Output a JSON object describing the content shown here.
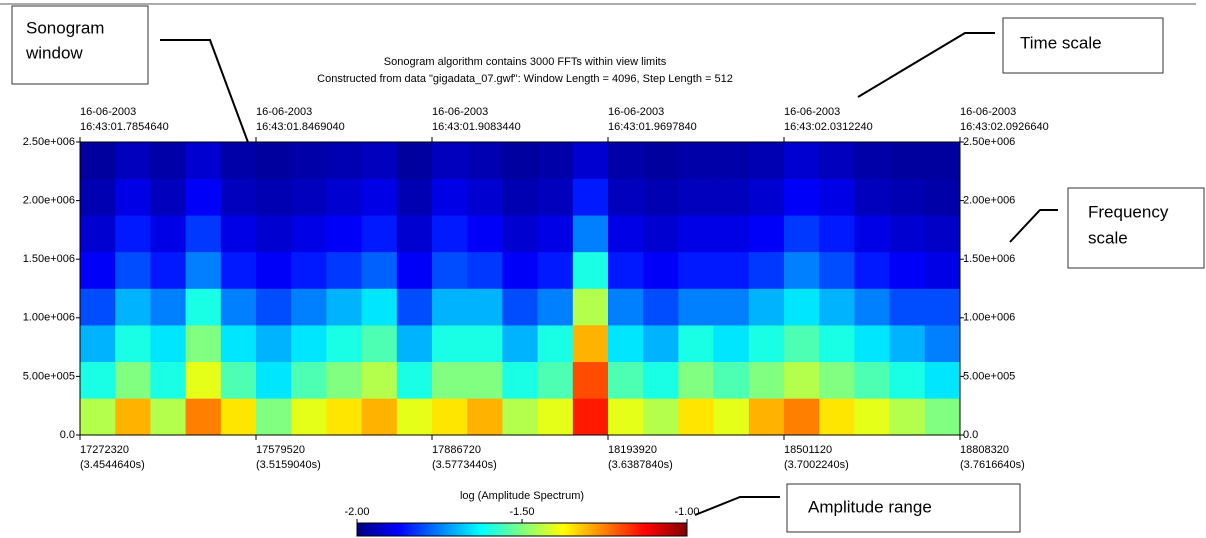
{
  "chart_data": {
    "type": "heatmap",
    "title": [
      "Sonogram algorithm contains 3000 FFTs within view limits",
      "Constructed from data \"gigadata_07.gwf\": Window Length = 4096, Step Length = 512"
    ],
    "xlim": [
      17272320,
      18808320
    ],
    "ylim": [
      0,
      2500000
    ],
    "xticks": [
      {
        "value": 17272320,
        "label": [
          "17272320",
          "(3.4544640s)"
        ]
      },
      {
        "value": 17579520,
        "label": [
          "17579520",
          "(3.5159040s)"
        ]
      },
      {
        "value": 17886720,
        "label": [
          "17886720",
          "(3.5773440s)"
        ]
      },
      {
        "value": 18193920,
        "label": [
          "18193920",
          "(3.6387840s)"
        ]
      },
      {
        "value": 18501120,
        "label": [
          "18501120",
          "(3.7002240s)"
        ]
      },
      {
        "value": 18808320,
        "label": [
          "18808320",
          "(3.7616640s)"
        ]
      }
    ],
    "x2ticks": [
      {
        "value": 17272320,
        "label": [
          "16-06-2003",
          "16:43:01.7854640"
        ]
      },
      {
        "value": 17579520,
        "label": [
          "16-06-2003",
          "16:43:01.8469040"
        ]
      },
      {
        "value": 17886720,
        "label": [
          "16-06-2003",
          "16:43:01.9083440"
        ]
      },
      {
        "value": 18193920,
        "label": [
          "16-06-2003",
          "16:43:01.9697840"
        ]
      },
      {
        "value": 18501120,
        "label": [
          "16-06-2003",
          "16:43:02.0312240"
        ]
      },
      {
        "value": 18808320,
        "label": [
          "16-06-2003",
          "16:43:02.0926640"
        ]
      }
    ],
    "yticks": [
      {
        "value": 0,
        "label": "0.0"
      },
      {
        "value": 500000,
        "label": "5.00e+005"
      },
      {
        "value": 1000000,
        "label": "1.00e+006"
      },
      {
        "value": 1500000,
        "label": "1.50e+006"
      },
      {
        "value": 2000000,
        "label": "2.00e+006"
      },
      {
        "value": 2500000,
        "label": "2.50e+006"
      }
    ],
    "xbins": [
      17272320,
      17333760,
      17395200,
      17456640,
      17518080,
      17579520,
      17640960,
      17702400,
      17763840,
      17825280,
      17886720,
      17948160,
      18009600,
      18071040,
      18132480,
      18193920,
      18255360,
      18316800,
      18378240,
      18439680,
      18501120,
      18562560,
      18624000,
      18685440,
      18746880,
      18808320
    ],
    "ybins": [
      0,
      312500,
      625000,
      937500,
      1250000,
      1562500,
      1875000,
      2187500,
      2500000
    ],
    "z": [
      [
        -1.45,
        -1.3,
        -1.45,
        -1.25,
        -1.35,
        -1.5,
        -1.4,
        -1.35,
        -1.3,
        -1.4,
        -1.35,
        -1.3,
        -1.45,
        -1.4,
        -1.15,
        -1.4,
        -1.45,
        -1.35,
        -1.4,
        -1.3,
        -1.25,
        -1.35,
        -1.4,
        -1.45,
        -1.5
      ],
      [
        -1.6,
        -1.5,
        -1.6,
        -1.4,
        -1.55,
        -1.65,
        -1.55,
        -1.5,
        -1.45,
        -1.6,
        -1.5,
        -1.5,
        -1.6,
        -1.55,
        -1.2,
        -1.55,
        -1.6,
        -1.5,
        -1.55,
        -1.5,
        -1.45,
        -1.5,
        -1.55,
        -1.6,
        -1.65
      ],
      [
        -1.7,
        -1.6,
        -1.65,
        -1.5,
        -1.65,
        -1.7,
        -1.65,
        -1.6,
        -1.55,
        -1.7,
        -1.6,
        -1.6,
        -1.7,
        -1.6,
        -1.3,
        -1.65,
        -1.7,
        -1.6,
        -1.65,
        -1.6,
        -1.55,
        -1.6,
        -1.65,
        -1.7,
        -1.75
      ],
      [
        -1.8,
        -1.7,
        -1.75,
        -1.6,
        -1.75,
        -1.8,
        -1.75,
        -1.7,
        -1.65,
        -1.8,
        -1.7,
        -1.7,
        -1.8,
        -1.75,
        -1.45,
        -1.75,
        -1.8,
        -1.75,
        -1.75,
        -1.7,
        -1.65,
        -1.7,
        -1.75,
        -1.8,
        -1.8
      ],
      [
        -1.88,
        -1.8,
        -1.85,
        -1.75,
        -1.85,
        -1.88,
        -1.85,
        -1.82,
        -1.78,
        -1.88,
        -1.8,
        -1.82,
        -1.88,
        -1.85,
        -1.6,
        -1.85,
        -1.88,
        -1.85,
        -1.85,
        -1.82,
        -1.75,
        -1.8,
        -1.85,
        -1.88,
        -1.9
      ],
      [
        -1.92,
        -1.85,
        -1.9,
        -1.82,
        -1.9,
        -1.92,
        -1.9,
        -1.88,
        -1.85,
        -1.92,
        -1.85,
        -1.88,
        -1.92,
        -1.9,
        -1.75,
        -1.9,
        -1.92,
        -1.9,
        -1.9,
        -1.88,
        -1.82,
        -1.85,
        -1.9,
        -1.92,
        -1.93
      ],
      [
        -1.95,
        -1.9,
        -1.94,
        -1.88,
        -1.94,
        -1.95,
        -1.94,
        -1.92,
        -1.9,
        -1.95,
        -1.9,
        -1.92,
        -1.95,
        -1.94,
        -1.85,
        -1.94,
        -1.95,
        -1.94,
        -1.94,
        -1.92,
        -1.88,
        -1.9,
        -1.94,
        -1.95,
        -1.96
      ],
      [
        -1.97,
        -1.94,
        -1.96,
        -1.92,
        -1.96,
        -1.97,
        -1.96,
        -1.95,
        -1.94,
        -1.97,
        -1.94,
        -1.95,
        -1.97,
        -1.96,
        -1.92,
        -1.96,
        -1.97,
        -1.96,
        -1.96,
        -1.95,
        -1.92,
        -1.94,
        -1.96,
        -1.97,
        -1.97
      ]
    ],
    "colorbar": {
      "label": "log (Amplitude Spectrum)",
      "lim": [
        -2,
        -1
      ],
      "ticks": [
        {
          "value": -2,
          "label": "-2.00"
        },
        {
          "value": -1.5,
          "label": "-1.50"
        },
        {
          "value": -1,
          "label": "-1.00"
        }
      ]
    },
    "annotations": {
      "sonogram_window": [
        "Sonogram",
        "window"
      ],
      "time_scale": "Time scale",
      "frequency_scale": [
        "Frequency",
        "scale"
      ],
      "amplitude_range": "Amplitude range"
    }
  }
}
